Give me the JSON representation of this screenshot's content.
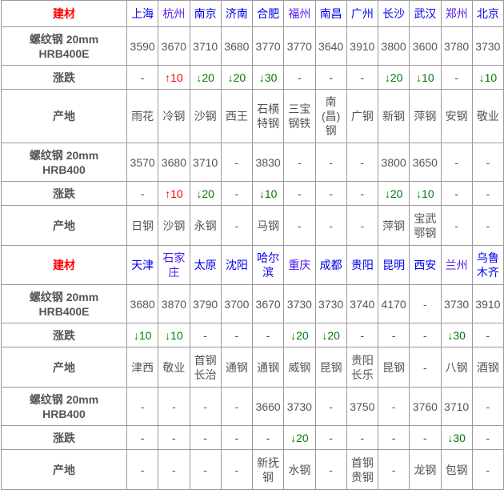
{
  "header_label": "建材",
  "change_label": "涨跌",
  "origin_label": "产地",
  "colors": {
    "header_label": "#ff0000",
    "city": "#0000ee",
    "up": "#ff0000",
    "down": "#007a00",
    "border": "#9a9a9a"
  },
  "blocks": [
    {
      "cities": [
        "上海",
        "杭州",
        "南京",
        "济南",
        "合肥",
        "福州",
        "南昌",
        "广州",
        "长沙",
        "武汉",
        "郑州",
        "北京"
      ],
      "products": [
        {
          "name": "螺纹钢 20mm",
          "grade": "HRB400E",
          "prices": [
            "3590",
            "3670",
            "3710",
            "3680",
            "3770",
            "3770",
            "3640",
            "3910",
            "3800",
            "3600",
            "3780",
            "3730"
          ],
          "changes": [
            "-",
            "↑10",
            "↓20",
            "↓20",
            "↓30",
            "-",
            "-",
            "-",
            "↓20",
            "↓10",
            "-",
            "↓10"
          ],
          "origins": [
            "雨花",
            "冷钢",
            "沙钢",
            "西王",
            "石横特钢",
            "三宝钢铁",
            "南(昌)钢",
            "广钢",
            "新钢",
            "萍钢",
            "安钢",
            "敬业"
          ]
        },
        {
          "name": "螺纹钢 20mm",
          "grade": "HRB400",
          "prices": [
            "3570",
            "3680",
            "3710",
            "-",
            "3830",
            "-",
            "-",
            "-",
            "3800",
            "3650",
            "-",
            "-"
          ],
          "changes": [
            "-",
            "↑10",
            "↓20",
            "-",
            "↓10",
            "-",
            "-",
            "-",
            "↓20",
            "↓10",
            "-",
            "-"
          ],
          "origins": [
            "日钢",
            "沙钢",
            "永钢",
            "-",
            "马钢",
            "-",
            "-",
            "-",
            "萍钢",
            "宝武鄂钢",
            "-",
            "-"
          ]
        }
      ]
    },
    {
      "cities": [
        "天津",
        "石家庄",
        "太原",
        "沈阳",
        "哈尔滨",
        "重庆",
        "成都",
        "贵阳",
        "昆明",
        "西安",
        "兰州",
        "乌鲁木齐"
      ],
      "products": [
        {
          "name": "螺纹钢 20mm",
          "grade": "HRB400E",
          "prices": [
            "3680",
            "3870",
            "3790",
            "3700",
            "3670",
            "3730",
            "3730",
            "3740",
            "4170",
            "-",
            "3730",
            "3910"
          ],
          "changes": [
            "↓10",
            "↓10",
            "-",
            "-",
            "-",
            "↓20",
            "↓20",
            "-",
            "-",
            "-",
            "↓30",
            "-"
          ],
          "origins": [
            "津西",
            "敬业",
            "首钢长治",
            "通钢",
            "通钢",
            "威钢",
            "昆钢",
            "贵阳长乐",
            "昆钢",
            "-",
            "八钢",
            "酒钢"
          ]
        },
        {
          "name": "螺纹钢 20mm",
          "grade": "HRB400",
          "prices": [
            "-",
            "-",
            "-",
            "-",
            "3660",
            "3730",
            "-",
            "3750",
            "-",
            "3760",
            "3710",
            "-"
          ],
          "changes": [
            "-",
            "-",
            "-",
            "-",
            "-",
            "↓20",
            "-",
            "-",
            "-",
            "-",
            "↓30",
            "-"
          ],
          "origins": [
            "-",
            "-",
            "-",
            "-",
            "新抚钢",
            "水钢",
            "-",
            "首钢贵钢",
            "-",
            "龙钢",
            "包钢",
            "-"
          ]
        }
      ]
    }
  ]
}
